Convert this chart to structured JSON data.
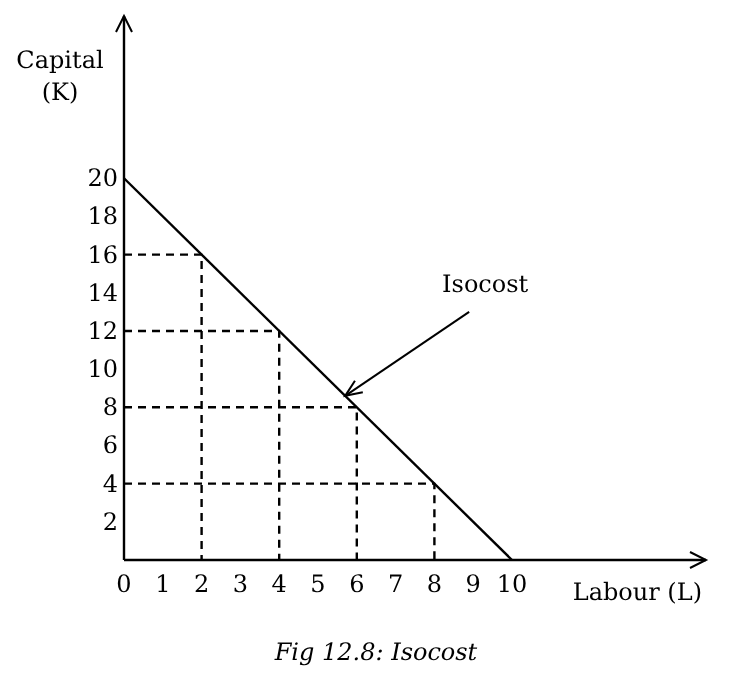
{
  "chart_data": {
    "type": "line",
    "xlabel": "Labour (L)",
    "ylabel": "Capital\n(K)",
    "xlim": [
      0,
      15
    ],
    "ylim": [
      0,
      28.5
    ],
    "xticks": [
      0,
      1,
      2,
      3,
      4,
      5,
      6,
      7,
      8,
      9,
      10
    ],
    "yticks": [
      2,
      4,
      6,
      8,
      10,
      12,
      14,
      16,
      18,
      20
    ],
    "grid": false,
    "series": [
      {
        "color": "#000000",
        "x": [
          0,
          10
        ],
        "values": [
          20,
          0
        ],
        "line_style": "solid"
      },
      {
        "color": "#000000",
        "x": [
          0,
          2,
          2
        ],
        "values": [
          16,
          16,
          0
        ],
        "line_style": "dashed"
      },
      {
        "color": "#000000",
        "x": [
          0,
          4,
          4
        ],
        "values": [
          12,
          12,
          0
        ],
        "line_style": "dashed"
      },
      {
        "color": "#000000",
        "x": [
          0,
          6,
          6
        ],
        "values": [
          8,
          8,
          0
        ],
        "line_style": "dashed"
      },
      {
        "color": "#000000",
        "x": [
          0,
          8,
          8
        ],
        "values": [
          4,
          4,
          0
        ],
        "line_style": "dashed"
      }
    ],
    "annotations": [
      {
        "text": "Isocost",
        "x": 5.7,
        "y": 8.6
      },
      "Fig 12.8: Isocost"
    ]
  }
}
